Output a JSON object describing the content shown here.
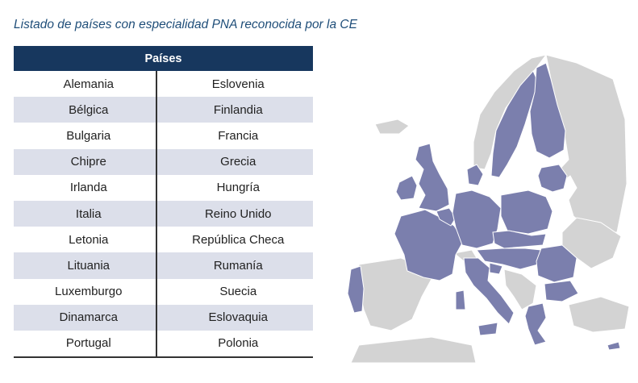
{
  "title": "Listado de países con especialidad PNA reconocida por la CE",
  "table": {
    "header": "Países",
    "rows": [
      [
        "Alemania",
        "Eslovenia"
      ],
      [
        "Bélgica",
        "Finlandia"
      ],
      [
        "Bulgaria",
        "Francia"
      ],
      [
        "Chipre",
        "Grecia"
      ],
      [
        "Irlanda",
        "Hungría"
      ],
      [
        "Italia",
        "Reino Unido"
      ],
      [
        "Letonia",
        "República Checa"
      ],
      [
        "Lituania",
        "Rumanía"
      ],
      [
        "Luxemburgo",
        "Suecia"
      ],
      [
        "Dinamarca",
        "Eslovaquia"
      ],
      [
        "Portugal",
        "Polonia"
      ]
    ]
  },
  "colors": {
    "header_bg": "#17375e",
    "row_shade": "#dcdfea",
    "highlight_country": "#7b7fad",
    "other_country": "#d3d3d3",
    "title": "#1f4e79"
  }
}
